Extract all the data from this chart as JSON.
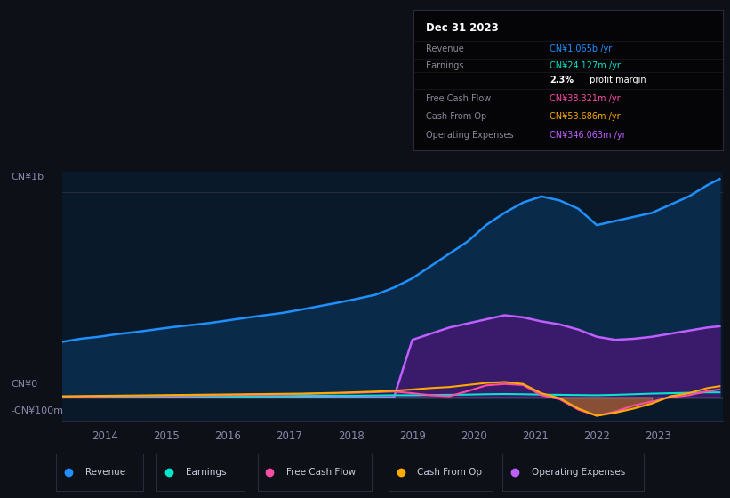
{
  "bg_color": "#0d1117",
  "plot_bg_color": "#0a1929",
  "title": "Dec 31 2023",
  "tooltip_bg": "#050508",
  "tooltip_border": "#2a2a3a",
  "ylabel_top": "CN¥1b",
  "ylabel_zero": "CN¥0",
  "ylabel_neg": "-CN¥100m",
  "x_years": [
    2013.3,
    2013.6,
    2013.9,
    2014.2,
    2014.5,
    2014.8,
    2015.1,
    2015.4,
    2015.7,
    2016.0,
    2016.3,
    2016.6,
    2016.9,
    2017.2,
    2017.5,
    2017.8,
    2018.1,
    2018.4,
    2018.7,
    2019.0,
    2019.3,
    2019.6,
    2019.9,
    2020.2,
    2020.5,
    2020.8,
    2021.1,
    2021.4,
    2021.7,
    2022.0,
    2022.3,
    2022.6,
    2022.9,
    2023.2,
    2023.5,
    2023.8,
    2024.0
  ],
  "revenue": [
    0.27,
    0.285,
    0.295,
    0.308,
    0.318,
    0.33,
    0.342,
    0.352,
    0.362,
    0.375,
    0.388,
    0.4,
    0.412,
    0.428,
    0.445,
    0.462,
    0.48,
    0.5,
    0.535,
    0.58,
    0.64,
    0.7,
    0.76,
    0.84,
    0.9,
    0.95,
    0.98,
    0.96,
    0.92,
    0.84,
    0.86,
    0.88,
    0.9,
    0.94,
    0.98,
    1.035,
    1.065
  ],
  "operating_expenses": [
    0.0,
    0.0,
    0.0,
    0.0,
    0.0,
    0.0,
    0.0,
    0.0,
    0.0,
    0.0,
    0.0,
    0.0,
    0.0,
    0.0,
    0.0,
    0.0,
    0.0,
    0.0,
    0.0,
    0.28,
    0.31,
    0.34,
    0.36,
    0.38,
    0.4,
    0.39,
    0.37,
    0.355,
    0.33,
    0.295,
    0.28,
    0.285,
    0.295,
    0.31,
    0.325,
    0.34,
    0.346
  ],
  "earnings": [
    0.002,
    0.002,
    0.003,
    0.003,
    0.004,
    0.004,
    0.005,
    0.005,
    0.005,
    0.005,
    0.005,
    0.006,
    0.006,
    0.007,
    0.007,
    0.008,
    0.008,
    0.009,
    0.01,
    0.01,
    0.011,
    0.012,
    0.013,
    0.015,
    0.016,
    0.015,
    0.013,
    0.012,
    0.011,
    0.01,
    0.012,
    0.015,
    0.018,
    0.02,
    0.022,
    0.024,
    0.024
  ],
  "free_cash_flow": [
    0.002,
    0.003,
    0.004,
    0.005,
    0.006,
    0.007,
    0.008,
    0.009,
    0.01,
    0.011,
    0.012,
    0.013,
    0.014,
    0.016,
    0.018,
    0.02,
    0.022,
    0.025,
    0.028,
    0.02,
    0.01,
    0.005,
    0.03,
    0.058,
    0.065,
    0.06,
    0.01,
    -0.01,
    -0.06,
    -0.09,
    -0.07,
    -0.04,
    -0.02,
    0.0,
    0.01,
    0.03,
    0.038
  ],
  "cash_from_op": [
    0.005,
    0.006,
    0.007,
    0.008,
    0.009,
    0.01,
    0.011,
    0.012,
    0.013,
    0.014,
    0.015,
    0.016,
    0.017,
    0.018,
    0.02,
    0.022,
    0.025,
    0.028,
    0.032,
    0.038,
    0.045,
    0.05,
    0.06,
    0.07,
    0.075,
    0.065,
    0.02,
    -0.005,
    -0.055,
    -0.09,
    -0.075,
    -0.055,
    -0.03,
    0.005,
    0.02,
    0.045,
    0.054
  ],
  "revenue_color": "#1e90ff",
  "revenue_fill": "#0a2a4a",
  "earnings_color": "#00e5cc",
  "free_cash_flow_color": "#ff4da6",
  "cash_from_op_color": "#ffaa00",
  "operating_expenses_color": "#bf5fff",
  "operating_expenses_fill": "#3a1a6a",
  "legend": [
    {
      "label": "Revenue",
      "color": "#1e90ff"
    },
    {
      "label": "Earnings",
      "color": "#00e5cc"
    },
    {
      "label": "Free Cash Flow",
      "color": "#ff4da6"
    },
    {
      "label": "Cash From Op",
      "color": "#ffaa00"
    },
    {
      "label": "Operating Expenses",
      "color": "#bf5fff"
    }
  ],
  "tooltip_rows": [
    {
      "label": "Revenue",
      "value": "CN¥1.065b /yr",
      "color": "#1e90ff"
    },
    {
      "label": "Earnings",
      "value": "CN¥24.127m /yr",
      "color": "#00e5cc"
    },
    {
      "label": "",
      "value": "2.3% profit margin",
      "color": "white",
      "bold_prefix": "2.3%"
    },
    {
      "label": "Free Cash Flow",
      "value": "CN¥38.321m /yr",
      "color": "#ff4da6"
    },
    {
      "label": "Cash From Op",
      "value": "CN¥53.686m /yr",
      "color": "#ffaa00"
    },
    {
      "label": "Operating Expenses",
      "value": "CN¥346.063m /yr",
      "color": "#bf5fff"
    }
  ]
}
